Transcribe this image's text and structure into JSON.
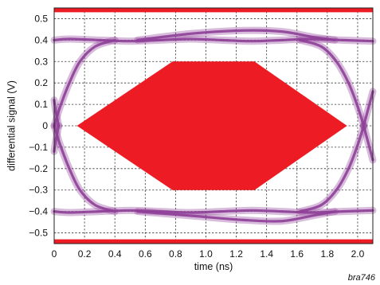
{
  "chart_data": {
    "type": "line",
    "title": "",
    "xlabel": "time (ns)",
    "ylabel": "differential signal (V)",
    "xlim": [
      0,
      2.1
    ],
    "ylim": [
      -0.55,
      0.55
    ],
    "x_ticks": [
      0,
      0.2,
      0.4,
      0.6,
      0.8,
      1.0,
      1.2,
      1.4,
      1.6,
      1.8,
      2.0
    ],
    "x_tick_labels": [
      "0",
      "0.2",
      "0.4",
      "0.6",
      "0.8",
      "1.0",
      "1.2",
      "1.4",
      "1.6",
      "1.8",
      "2.0"
    ],
    "y_ticks": [
      0.5,
      0.4,
      0.3,
      0.2,
      0.1,
      0,
      -0.1,
      -0.2,
      -0.3,
      -0.4,
      -0.5
    ],
    "y_tick_labels": [
      "0.5",
      "0.4",
      "0.3",
      "0.2",
      "0.1",
      "0",
      "−0.1",
      "−0.2",
      "−0.3",
      "−0.4",
      "−0.5"
    ],
    "grid": true,
    "eye_traces": [
      {
        "role": "upper-level",
        "points": [
          [
            0,
            0.4
          ],
          [
            0.1,
            0.405
          ],
          [
            0.3,
            0.4
          ],
          [
            0.5,
            0.395
          ],
          [
            0.7,
            0.4
          ],
          [
            0.9,
            0.405
          ],
          [
            1.1,
            0.4
          ],
          [
            1.3,
            0.395
          ],
          [
            1.5,
            0.4
          ],
          [
            1.7,
            0.405
          ],
          [
            1.9,
            0.4
          ],
          [
            2.1,
            0.395
          ]
        ]
      },
      {
        "role": "upper-level-overshoot",
        "points": [
          [
            0.55,
            0.4
          ],
          [
            0.9,
            0.43
          ],
          [
            1.25,
            0.445
          ],
          [
            1.5,
            0.44
          ],
          [
            1.7,
            0.415
          ],
          [
            1.85,
            0.4
          ]
        ]
      },
      {
        "role": "lower-level",
        "points": [
          [
            0,
            -0.4
          ],
          [
            0.1,
            -0.405
          ],
          [
            0.3,
            -0.4
          ],
          [
            0.5,
            -0.395
          ],
          [
            0.7,
            -0.4
          ],
          [
            0.9,
            -0.405
          ],
          [
            1.1,
            -0.4
          ],
          [
            1.3,
            -0.395
          ],
          [
            1.5,
            -0.4
          ],
          [
            1.7,
            -0.405
          ],
          [
            1.9,
            -0.4
          ],
          [
            2.1,
            -0.395
          ]
        ]
      },
      {
        "role": "lower-level-overshoot",
        "points": [
          [
            0.55,
            -0.4
          ],
          [
            0.9,
            -0.42
          ],
          [
            1.25,
            -0.44
          ],
          [
            1.5,
            -0.445
          ],
          [
            1.7,
            -0.42
          ],
          [
            1.85,
            -0.4
          ]
        ]
      },
      {
        "role": "left-crossing-rise",
        "points": [
          [
            0,
            0
          ],
          [
            0.04,
            0.09
          ],
          [
            0.1,
            0.2
          ],
          [
            0.17,
            0.3
          ],
          [
            0.27,
            0.37
          ],
          [
            0.4,
            0.4
          ]
        ]
      },
      {
        "role": "left-crossing-fall",
        "points": [
          [
            0,
            0
          ],
          [
            0.04,
            -0.09
          ],
          [
            0.1,
            -0.2
          ],
          [
            0.17,
            -0.3
          ],
          [
            0.27,
            -0.37
          ],
          [
            0.4,
            -0.4
          ]
        ]
      },
      {
        "role": "left-entry-from-top",
        "points": [
          [
            0,
            0.12
          ],
          [
            0.01,
            0.07
          ],
          [
            0.03,
            0
          ]
        ]
      },
      {
        "role": "left-entry-from-bottom",
        "points": [
          [
            0,
            -0.12
          ],
          [
            0.01,
            -0.07
          ],
          [
            0.03,
            0
          ]
        ]
      },
      {
        "role": "right-crossing-fall",
        "points": [
          [
            1.62,
            0.4
          ],
          [
            1.76,
            0.37
          ],
          [
            1.86,
            0.3
          ],
          [
            1.94,
            0.2
          ],
          [
            2.0,
            0.09
          ],
          [
            2.04,
            0
          ]
        ]
      },
      {
        "role": "right-crossing-rise",
        "points": [
          [
            1.62,
            -0.4
          ],
          [
            1.76,
            -0.37
          ],
          [
            1.86,
            -0.3
          ],
          [
            1.94,
            -0.2
          ],
          [
            2.0,
            -0.09
          ],
          [
            2.04,
            0
          ]
        ]
      },
      {
        "role": "right-exit-up",
        "points": [
          [
            2.04,
            0
          ],
          [
            2.07,
            0.08
          ],
          [
            2.1,
            0.16
          ]
        ]
      },
      {
        "role": "right-exit-down",
        "points": [
          [
            2.04,
            0
          ],
          [
            2.07,
            -0.08
          ],
          [
            2.1,
            -0.16
          ]
        ]
      }
    ],
    "mask_polygon": [
      [
        0.15,
        0
      ],
      [
        0.78,
        0.3
      ],
      [
        1.32,
        0.3
      ],
      [
        1.93,
        0
      ],
      [
        1.32,
        -0.3
      ],
      [
        0.78,
        -0.3
      ]
    ],
    "mask_bands": [
      {
        "name": "upper",
        "from": 0.53,
        "to": 0.55
      },
      {
        "name": "lower",
        "from": -0.55,
        "to": -0.53
      }
    ],
    "colors": {
      "trace": "#8e3f98",
      "mask": "#ed1c24",
      "grid": "#333333"
    }
  },
  "credit": "bra746"
}
